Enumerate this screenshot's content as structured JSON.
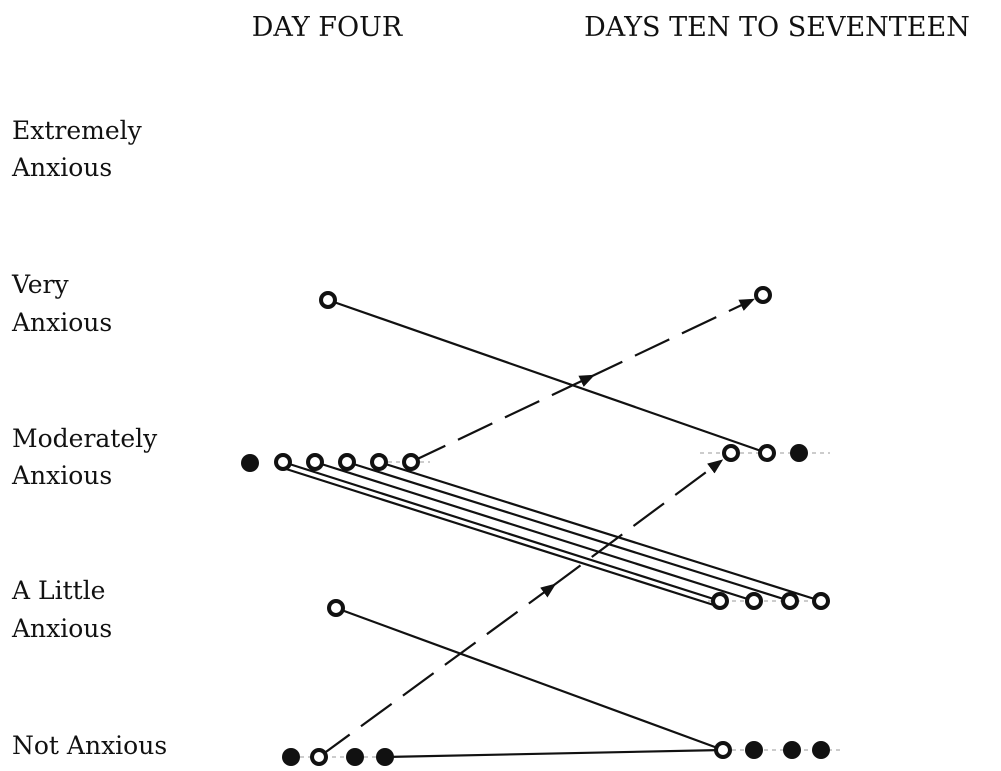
{
  "header": {
    "left": "DAY FOUR",
    "right": "DAYS TEN TO SEVENTEEN"
  },
  "rows": [
    [
      "Extremely",
      "Anxious"
    ],
    [
      "Very",
      "Anxious"
    ],
    [
      "Moderately",
      "Anxious"
    ],
    [
      "A Little",
      "Anxious"
    ],
    [
      "Not Anxious"
    ]
  ]
}
